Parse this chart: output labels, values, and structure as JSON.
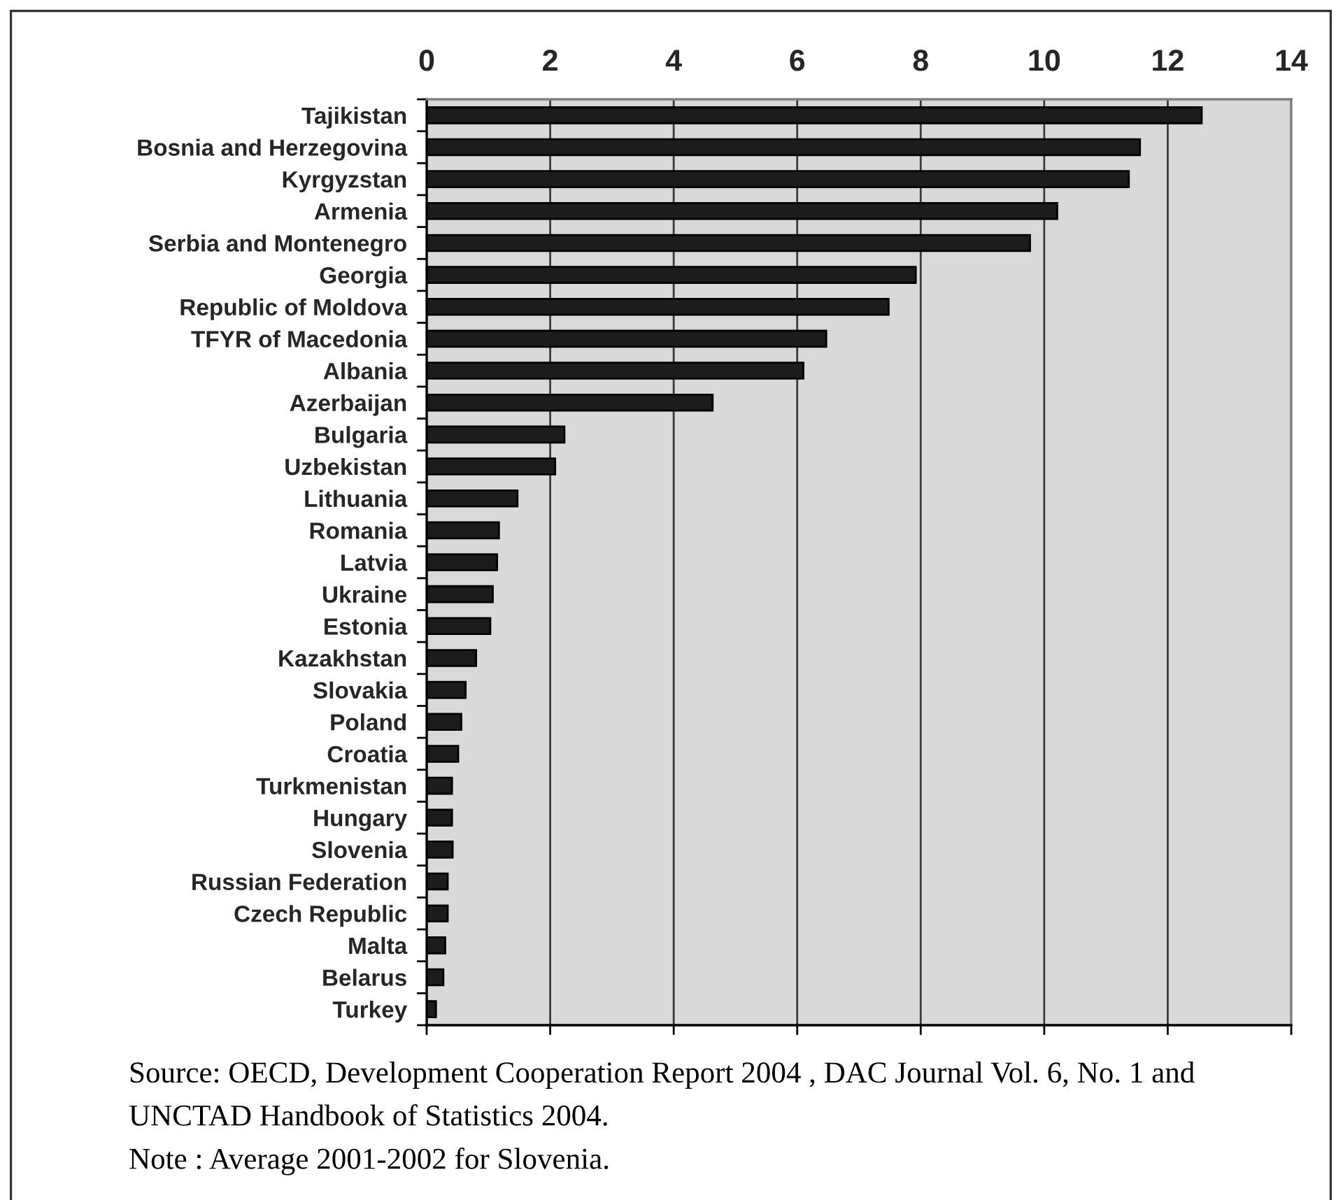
{
  "chart_data": {
    "type": "bar",
    "orientation": "horizontal",
    "categories": [
      "Tajikistan",
      "Bosnia and Herzegovina",
      "Kyrgyzstan",
      "Armenia",
      "Serbia and Montenegro",
      "Georgia",
      "Republic of Moldova",
      "TFYR of Macedonia",
      "Albania",
      "Azerbaijan",
      "Bulgaria",
      "Uzbekistan",
      "Lithuania",
      "Romania",
      "Latvia",
      "Ukraine",
      "Estonia",
      "Kazakhstan",
      "Slovakia",
      "Poland",
      "Croatia",
      "Turkmenistan",
      "Hungary",
      "Slovenia",
      "Russian Federation",
      "Czech Republic",
      "Malta",
      "Belarus",
      "Turkey"
    ],
    "values": [
      12.55,
      11.55,
      11.37,
      10.21,
      9.77,
      7.92,
      7.48,
      6.47,
      6.1,
      4.63,
      2.23,
      2.08,
      1.47,
      1.17,
      1.14,
      1.07,
      1.03,
      0.8,
      0.63,
      0.56,
      0.51,
      0.41,
      0.41,
      0.42,
      0.34,
      0.34,
      0.3,
      0.27,
      0.15
    ],
    "color": "#1c1c1c",
    "xlim": [
      0,
      14
    ],
    "xticks": [
      0,
      2,
      4,
      6,
      8,
      10,
      12,
      14
    ],
    "grid": "x",
    "annotations": [
      "Source: OECD, Development Cooperation Report 2004 , DAC Journal Vol. 6, No. 1 and\nUNCTAD Handbook of Statistics 2004.",
      "Note : Average 2001-2002 for Slovenia."
    ]
  }
}
